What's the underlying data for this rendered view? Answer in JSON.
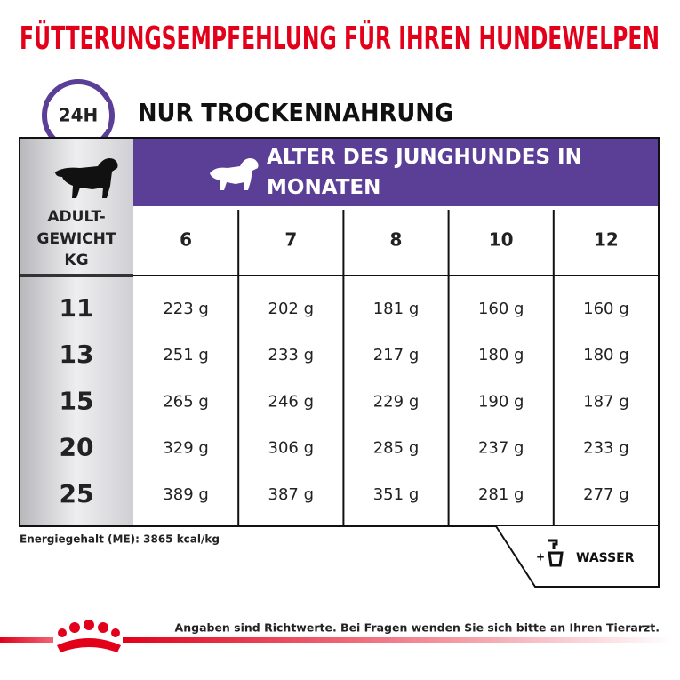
{
  "header": {
    "title": "FÜTTERUNGSEMPFEHLUNG FÜR IHREN HUNDEWELPEN",
    "badge": "24H",
    "subtitle": "NUR TROCKENNAHRUNG"
  },
  "table": {
    "age_header": "ALTER DES JUNGHUNDES IN MONATEN",
    "weight_header": [
      "ADULT-",
      "GEWICHT",
      "KG"
    ],
    "months": [
      "6",
      "7",
      "8",
      "10",
      "12"
    ],
    "rows": [
      {
        "weight": "11",
        "values": [
          "223 g",
          "202 g",
          "181 g",
          "160 g",
          "160 g"
        ]
      },
      {
        "weight": "13",
        "values": [
          "251 g",
          "233 g",
          "217 g",
          "180 g",
          "180 g"
        ]
      },
      {
        "weight": "15",
        "values": [
          "265 g",
          "246 g",
          "229 g",
          "190 g",
          "187 g"
        ]
      },
      {
        "weight": "20",
        "values": [
          "329 g",
          "306 g",
          "285 g",
          "237 g",
          "233 g"
        ]
      },
      {
        "weight": "25",
        "values": [
          "389 g",
          "387 g",
          "351 g",
          "281 g",
          "277 g"
        ]
      }
    ]
  },
  "notes": {
    "energy": "Energiegehalt (ME): 3865 kcal/kg",
    "water": "WASSER",
    "footer": "Angaben sind Richtwerte. Bei Fragen wenden Sie sich bitte an Ihren Tierarzt."
  }
}
